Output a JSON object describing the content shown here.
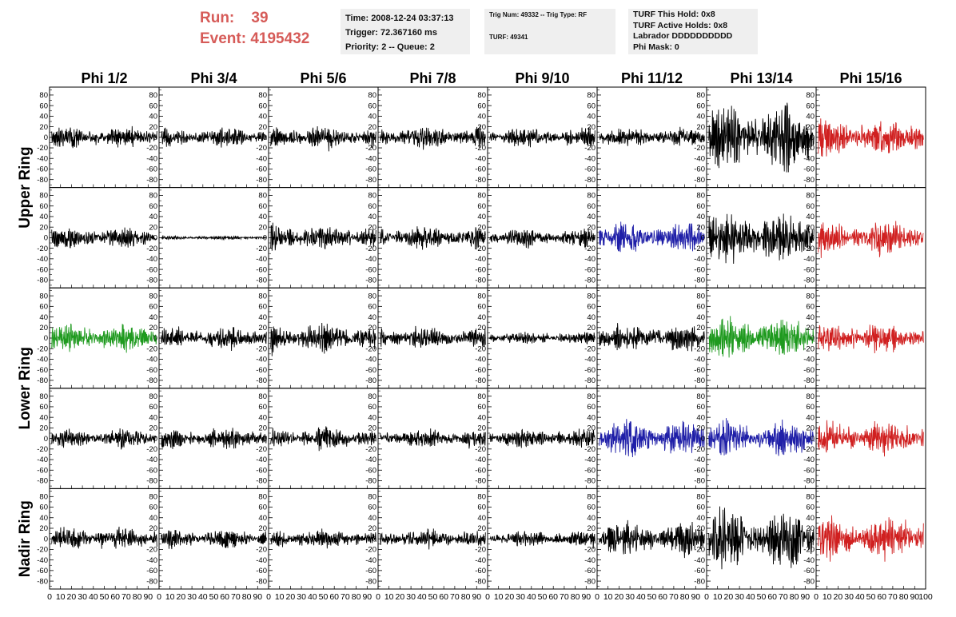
{
  "header": {
    "run_label": "Run:",
    "run_value": "39",
    "event_label": "Event:",
    "event_value": "4195432"
  },
  "info_trigger": {
    "time": "Time: 2008-12-24 03:37:13",
    "trigger": "Trigger: 72.367160 ms",
    "priority": "Priority: 2 -- Queue: 2"
  },
  "info_trig_num": {
    "line1": "Trig Num: 49332 -- Trig Type: RF",
    "line2": "TURF: 49341"
  },
  "info_turf": {
    "this_hold": "TURF This Hold: 0x8",
    "active_holds": "TURF Active Holds: 0x8",
    "labrador": "Labrador DDDDDDDDDD",
    "phi_mask": "Phi Mask: 0"
  },
  "colors": {
    "black": "#000000",
    "red": "#d02020",
    "blue": "#1f1fa8",
    "green": "#1f9a1f",
    "run_text": "#d65b58",
    "info_bg": "#efefef"
  },
  "chart_data": {
    "type": "line",
    "columns": [
      "Phi 1/2",
      "Phi 3/4",
      "Phi 5/6",
      "Phi 7/8",
      "Phi 9/10",
      "Phi 11/12",
      "Phi 13/14",
      "Phi 15/16"
    ],
    "ring_labels": [
      {
        "text": "Upper Ring",
        "rows": [
          0,
          1
        ]
      },
      {
        "text": "Lower Ring",
        "rows": [
          2,
          3
        ]
      },
      {
        "text": "Nadir Ring",
        "rows": [
          4
        ]
      }
    ],
    "ylim": [
      -95,
      95
    ],
    "yticks": [
      -80,
      -60,
      -40,
      -20,
      0,
      20,
      40,
      60,
      80
    ],
    "xlim": [
      0,
      100
    ],
    "xticks": [
      0,
      10,
      20,
      30,
      40,
      50,
      60,
      70,
      80,
      90,
      100
    ],
    "grid": false,
    "legend": "none",
    "rows": [
      {
        "colors": [
          "black",
          "black",
          "black",
          "black",
          "black",
          "black",
          "black",
          "red"
        ],
        "amplitudes": [
          20,
          18,
          20,
          22,
          18,
          18,
          62,
          35
        ]
      },
      {
        "colors": [
          "black",
          "black",
          "black",
          "black",
          "black",
          "blue",
          "black",
          "red"
        ],
        "amplitudes": [
          20,
          4,
          25,
          22,
          18,
          28,
          48,
          32
        ]
      },
      {
        "colors": [
          "green",
          "black",
          "black",
          "black",
          "black",
          "black",
          "green",
          "red"
        ],
        "amplitudes": [
          25,
          20,
          28,
          20,
          12,
          25,
          38,
          28
        ]
      },
      {
        "colors": [
          "black",
          "black",
          "black",
          "black",
          "black",
          "blue",
          "blue",
          "red"
        ],
        "amplitudes": [
          18,
          20,
          22,
          18,
          18,
          35,
          32,
          32
        ]
      },
      {
        "colors": [
          "black",
          "black",
          "black",
          "black",
          "black",
          "black",
          "black",
          "red"
        ],
        "amplitudes": [
          22,
          18,
          18,
          18,
          15,
          32,
          55,
          40
        ]
      }
    ]
  }
}
